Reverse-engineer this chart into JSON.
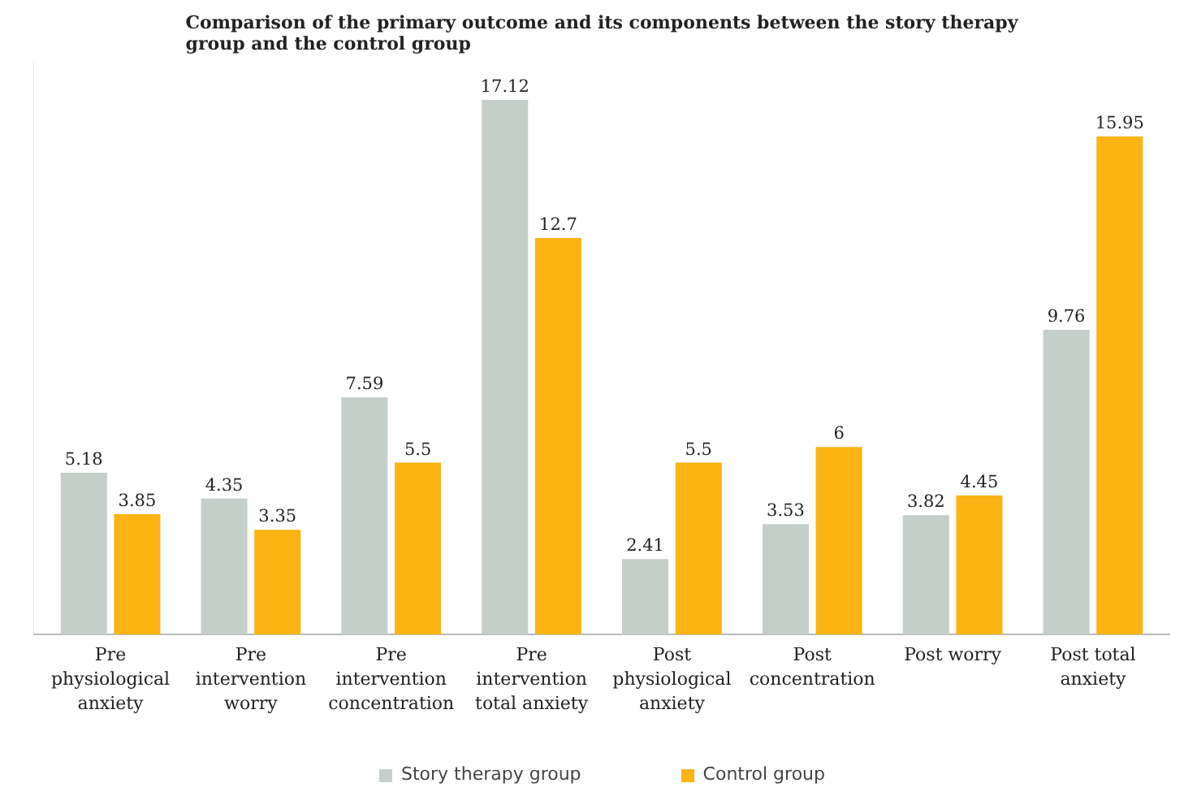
{
  "chart_data": {
    "type": "bar",
    "title": "Comparison of the primary outcome and its components between the story therapy group and the control group",
    "categories": [
      "Pre physiological anxiety",
      "Pre intervention worry",
      "Pre intervention concentration",
      "Pre intervention total anxiety",
      "Post physiological anxiety",
      "Post concentration",
      "Post worry",
      "Post total anxiety"
    ],
    "series": [
      {
        "name": "Story therapy group",
        "color": "#c5cfca",
        "values": [
          5.18,
          4.35,
          7.59,
          17.12,
          2.41,
          3.53,
          3.82,
          9.76
        ]
      },
      {
        "name": "Control group",
        "color": "#fbb414",
        "values": [
          3.85,
          3.35,
          5.5,
          12.7,
          5.5,
          6,
          4.45,
          15.95
        ]
      }
    ],
    "data_labels": true,
    "legend": "bottom"
  }
}
